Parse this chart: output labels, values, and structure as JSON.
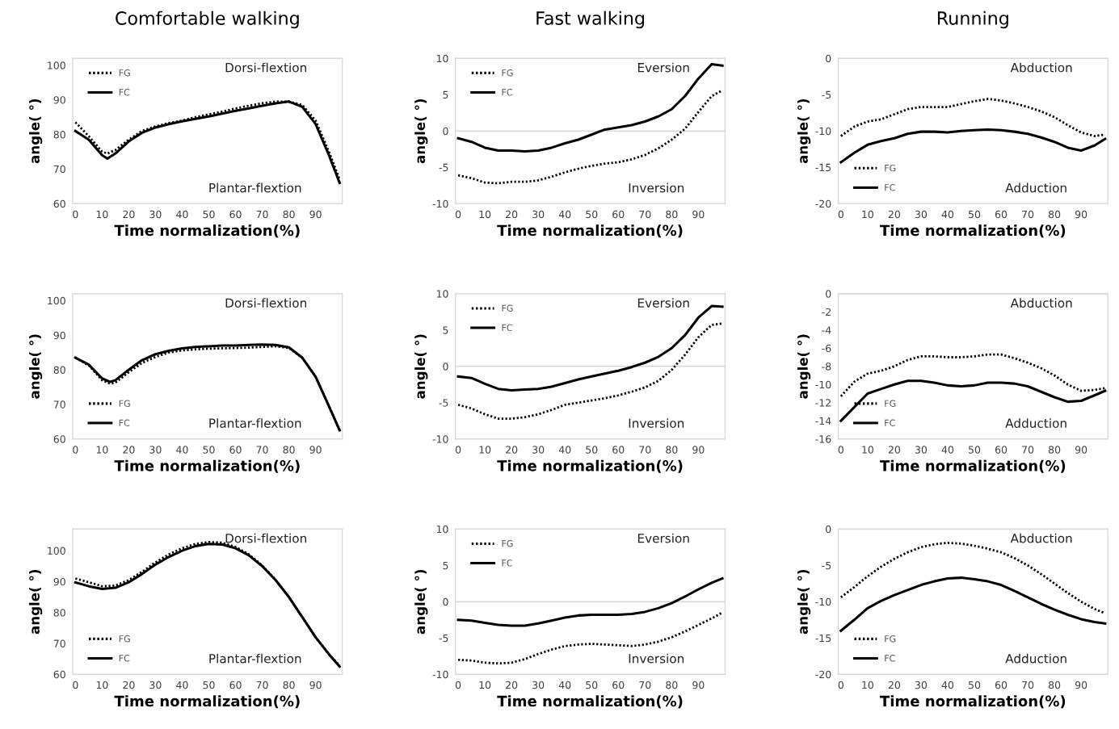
{
  "chart_data": [
    {
      "type": "line",
      "title": "Comfortable walking",
      "xlabel": "Time normalization(%)",
      "ylabel": "angle( °)",
      "annotations": [
        "Dorsi-flextion",
        "Plantar-flextion"
      ],
      "legend": "top left",
      "x": [
        0,
        5,
        10,
        12,
        15,
        20,
        25,
        30,
        35,
        40,
        45,
        50,
        55,
        60,
        65,
        70,
        75,
        80,
        85,
        90,
        95,
        99
      ],
      "xlim": [
        -1,
        100
      ],
      "xticks": [
        0,
        10,
        20,
        30,
        40,
        50,
        60,
        70,
        80,
        90
      ],
      "ylim": [
        60,
        102
      ],
      "yticks": [
        60,
        70,
        80,
        90,
        100
      ],
      "series": [
        {
          "name": "FG",
          "color": "#000000",
          "line_style": "dotted",
          "values": [
            83.5,
            79.5,
            75,
            74.5,
            75.5,
            78.5,
            81,
            82.3,
            83.3,
            84,
            85,
            85.8,
            86.6,
            87.5,
            88.3,
            89,
            89.5,
            89.5,
            88.5,
            84,
            75,
            67
          ]
        },
        {
          "name": "FC",
          "color": "#000000",
          "line_style": "solid",
          "values": [
            81,
            78.5,
            74,
            73,
            74.5,
            78,
            80.5,
            82,
            83,
            83.8,
            84.5,
            85.2,
            86,
            86.8,
            87.5,
            88.3,
            89,
            89.5,
            88,
            83,
            74,
            66
          ]
        }
      ]
    },
    {
      "type": "line",
      "title": "Fast walking",
      "xlabel": "Time normalization(%)",
      "ylabel": "angle( °)",
      "annotations": [
        "Eversion",
        "Inversion"
      ],
      "legend": "top left",
      "x": [
        0,
        5,
        10,
        15,
        20,
        25,
        30,
        35,
        40,
        45,
        50,
        55,
        60,
        65,
        70,
        75,
        80,
        85,
        90,
        95,
        99
      ],
      "xlim": [
        -1,
        100
      ],
      "xticks": [
        0,
        10,
        20,
        30,
        40,
        50,
        60,
        70,
        80,
        90
      ],
      "ylim": [
        -10,
        10
      ],
      "yticks": [
        -10,
        -5,
        0,
        5,
        10
      ],
      "ref_lines": [
        {
          "axis": "y",
          "value": 0,
          "color": "#d9d9d9"
        }
      ],
      "series": [
        {
          "name": "FG",
          "color": "#000000",
          "line_style": "dotted",
          "values": [
            -6.1,
            -6.5,
            -7.1,
            -7.2,
            -7,
            -7,
            -6.8,
            -6.3,
            -5.7,
            -5.2,
            -4.8,
            -4.5,
            -4.3,
            -3.9,
            -3.3,
            -2.4,
            -1.2,
            0.3,
            2.6,
            4.8,
            5.6
          ]
        },
        {
          "name": "FC",
          "color": "#000000",
          "line_style": "solid",
          "values": [
            -1,
            -1.5,
            -2.3,
            -2.7,
            -2.7,
            -2.8,
            -2.7,
            -2.3,
            -1.7,
            -1.2,
            -0.5,
            0.2,
            0.5,
            0.8,
            1.3,
            2,
            3,
            4.8,
            7.2,
            9.2,
            9
          ]
        }
      ]
    },
    {
      "type": "line",
      "title": "Running",
      "xlabel": "Time normalization(%)",
      "ylabel": "angle( °)",
      "annotations": [
        "Abduction",
        "Adduction"
      ],
      "legend": "bottom left",
      "x": [
        0,
        5,
        10,
        15,
        20,
        25,
        30,
        35,
        40,
        45,
        50,
        55,
        60,
        65,
        70,
        75,
        80,
        85,
        90,
        95,
        99
      ],
      "xlim": [
        -1,
        100
      ],
      "xticks": [
        0,
        10,
        20,
        30,
        40,
        50,
        60,
        70,
        80,
        90
      ],
      "ylim": [
        -20,
        0
      ],
      "yticks": [
        -20,
        -15,
        -10,
        -5,
        0
      ],
      "ref_lines": [
        {
          "axis": "y",
          "value": 0,
          "color": "#d9d9d9"
        }
      ],
      "series": [
        {
          "name": "FG",
          "color": "#000000",
          "line_style": "dotted",
          "values": [
            -10.7,
            -9.4,
            -8.7,
            -8.4,
            -7.7,
            -7,
            -6.7,
            -6.7,
            -6.7,
            -6.3,
            -5.9,
            -5.6,
            -5.8,
            -6.2,
            -6.7,
            -7.3,
            -8.1,
            -9.2,
            -10.2,
            -10.7,
            -10.5
          ]
        },
        {
          "name": "FC",
          "color": "#000000",
          "line_style": "solid",
          "values": [
            -14.3,
            -13,
            -11.9,
            -11.4,
            -11,
            -10.4,
            -10.1,
            -10.1,
            -10.2,
            -10,
            -9.9,
            -9.8,
            -9.9,
            -10.1,
            -10.4,
            -10.9,
            -11.5,
            -12.3,
            -12.7,
            -12,
            -11.1
          ]
        }
      ]
    },
    {
      "type": "line",
      "xlabel": "Time normalization(%)",
      "ylabel": "angle( °)",
      "annotations": [
        "Dorsi-flextion",
        "Plantar-flextion"
      ],
      "legend": "bottom left",
      "x": [
        0,
        5,
        10,
        13,
        15,
        20,
        25,
        30,
        35,
        40,
        45,
        50,
        55,
        60,
        65,
        70,
        75,
        80,
        85,
        90,
        95,
        99
      ],
      "xlim": [
        -1,
        100
      ],
      "xticks": [
        0,
        10,
        20,
        30,
        40,
        50,
        60,
        70,
        80,
        90
      ],
      "ylim": [
        60,
        102
      ],
      "yticks": [
        60,
        70,
        80,
        90,
        100
      ],
      "series": [
        {
          "name": "FG",
          "color": "#000000",
          "line_style": "dotted",
          "values": [
            83.5,
            81.3,
            77,
            76,
            76.3,
            79.3,
            82,
            83.7,
            85,
            85.6,
            85.9,
            86.1,
            86.2,
            86.3,
            86.4,
            86.6,
            86.8,
            86.3,
            83.5,
            78,
            69.5,
            62.5
          ]
        },
        {
          "name": "FC",
          "color": "#000000",
          "line_style": "solid",
          "values": [
            83.5,
            81.5,
            77.5,
            76.5,
            77,
            80,
            82.8,
            84.5,
            85.5,
            86.2,
            86.6,
            86.8,
            87,
            87,
            87.2,
            87.3,
            87.2,
            86.5,
            83.5,
            78,
            69.5,
            62.5
          ]
        }
      ]
    },
    {
      "type": "line",
      "xlabel": "Time normalization(%)",
      "ylabel": "angle( °)",
      "annotations": [
        "Eversion",
        "Inversion"
      ],
      "legend": "top left",
      "x": [
        0,
        5,
        10,
        15,
        20,
        25,
        30,
        35,
        40,
        45,
        50,
        55,
        60,
        65,
        70,
        75,
        80,
        85,
        90,
        95,
        99
      ],
      "xlim": [
        -1,
        100
      ],
      "xticks": [
        0,
        10,
        20,
        30,
        40,
        50,
        60,
        70,
        80,
        90
      ],
      "ylim": [
        -10,
        10
      ],
      "yticks": [
        -10,
        -5,
        0,
        5,
        10
      ],
      "ref_lines": [
        {
          "axis": "y",
          "value": 0,
          "color": "#d9d9d9"
        }
      ],
      "series": [
        {
          "name": "FG",
          "color": "#000000",
          "line_style": "dotted",
          "values": [
            -5.3,
            -5.8,
            -6.6,
            -7.2,
            -7.2,
            -7,
            -6.6,
            -6,
            -5.3,
            -5,
            -4.7,
            -4.4,
            -4,
            -3.5,
            -2.9,
            -2,
            -0.5,
            1.6,
            4,
            5.7,
            5.9
          ]
        },
        {
          "name": "FC",
          "color": "#000000",
          "line_style": "solid",
          "values": [
            -1.4,
            -1.6,
            -2.4,
            -3.1,
            -3.3,
            -3.2,
            -3.1,
            -2.8,
            -2.3,
            -1.8,
            -1.4,
            -1,
            -0.6,
            -0.1,
            0.5,
            1.3,
            2.5,
            4.3,
            6.7,
            8.3,
            8.2
          ]
        }
      ]
    },
    {
      "type": "line",
      "xlabel": "Time normalization(%)",
      "ylabel": "angle( °)",
      "annotations": [
        "Abduction",
        "Adduction"
      ],
      "legend": "bottom left",
      "x": [
        0,
        5,
        10,
        15,
        20,
        25,
        30,
        35,
        40,
        45,
        50,
        55,
        60,
        65,
        70,
        75,
        80,
        85,
        90,
        95,
        99
      ],
      "xlim": [
        -1,
        100
      ],
      "xticks": [
        0,
        10,
        20,
        30,
        40,
        50,
        60,
        70,
        80,
        90
      ],
      "ylim": [
        -16,
        0
      ],
      "yticks": [
        -16,
        -14,
        -12,
        -10,
        -8,
        -6,
        -4,
        -2,
        0
      ],
      "ref_lines": [
        {
          "axis": "y",
          "value": 0,
          "color": "#d9d9d9"
        }
      ],
      "series": [
        {
          "name": "FG",
          "color": "#000000",
          "line_style": "dotted",
          "values": [
            -11.3,
            -9.7,
            -8.8,
            -8.5,
            -8,
            -7.3,
            -6.9,
            -6.9,
            -7,
            -7,
            -6.9,
            -6.7,
            -6.7,
            -7.1,
            -7.6,
            -8.2,
            -9,
            -10,
            -10.7,
            -10.6,
            -10.4
          ]
        },
        {
          "name": "FC",
          "color": "#000000",
          "line_style": "solid",
          "values": [
            -14,
            -12.5,
            -11,
            -10.5,
            -10,
            -9.6,
            -9.6,
            -9.8,
            -10.1,
            -10.2,
            -10.1,
            -9.8,
            -9.8,
            -9.9,
            -10.2,
            -10.8,
            -11.4,
            -11.9,
            -11.8,
            -11.2,
            -10.7
          ]
        }
      ]
    },
    {
      "type": "line",
      "xlabel": "Time normalization(%)",
      "ylabel": "angle( °)",
      "annotations": [
        "Dorsi-flextion",
        "Plantar-flextion"
      ],
      "legend": "bottom left",
      "x": [
        0,
        5,
        10,
        15,
        20,
        25,
        30,
        35,
        40,
        45,
        50,
        55,
        60,
        65,
        70,
        75,
        80,
        85,
        90,
        95,
        99
      ],
      "xlim": [
        -1,
        100
      ],
      "xticks": [
        0,
        10,
        20,
        30,
        40,
        50,
        60,
        70,
        80,
        90
      ],
      "ylim": [
        60,
        107
      ],
      "yticks": [
        60,
        70,
        80,
        90,
        100
      ],
      "series": [
        {
          "name": "FG",
          "color": "#000000",
          "line_style": "dotted",
          "values": [
            91,
            89.8,
            88.5,
            88.7,
            90.5,
            93.2,
            96.2,
            98.8,
            100.8,
            102.2,
            102.8,
            102.6,
            101.2,
            98.8,
            95.2,
            90.6,
            85,
            78.5,
            72,
            66.5,
            62.8
          ]
        },
        {
          "name": "FC",
          "color": "#000000",
          "line_style": "solid",
          "values": [
            89.7,
            88.5,
            87.6,
            88,
            89.8,
            92.5,
            95.5,
            98,
            100,
            101.5,
            102.2,
            102,
            100.8,
            98.5,
            95,
            90.5,
            85,
            78.5,
            72,
            66.5,
            62.5
          ]
        }
      ]
    },
    {
      "type": "line",
      "xlabel": "Time normalization(%)",
      "ylabel": "angle( °)",
      "annotations": [
        "Eversion",
        "Inversion"
      ],
      "legend": "top left",
      "x": [
        0,
        5,
        10,
        15,
        20,
        25,
        30,
        35,
        40,
        45,
        50,
        55,
        60,
        65,
        70,
        75,
        80,
        85,
        90,
        95,
        99
      ],
      "xlim": [
        -1,
        100
      ],
      "xticks": [
        0,
        10,
        20,
        30,
        40,
        50,
        60,
        70,
        80,
        90
      ],
      "ylim": [
        -10,
        10
      ],
      "yticks": [
        -10,
        -5,
        0,
        5,
        10
      ],
      "ref_lines": [
        {
          "axis": "y",
          "value": 0,
          "color": "#d9d9d9"
        }
      ],
      "series": [
        {
          "name": "FG",
          "color": "#000000",
          "line_style": "dotted",
          "values": [
            -8,
            -8.1,
            -8.4,
            -8.5,
            -8.4,
            -7.9,
            -7.2,
            -6.6,
            -6.1,
            -5.9,
            -5.8,
            -5.9,
            -6,
            -6.1,
            -5.9,
            -5.5,
            -4.9,
            -4.1,
            -3.2,
            -2.3,
            -1.5
          ]
        },
        {
          "name": "FC",
          "color": "#000000",
          "line_style": "solid",
          "values": [
            -2.5,
            -2.6,
            -2.9,
            -3.2,
            -3.3,
            -3.3,
            -3,
            -2.6,
            -2.2,
            -1.9,
            -1.8,
            -1.8,
            -1.8,
            -1.7,
            -1.4,
            -0.9,
            -0.2,
            0.7,
            1.7,
            2.6,
            3.2
          ]
        }
      ]
    },
    {
      "type": "line",
      "xlabel": "Time normalization(%)",
      "ylabel": "angle( °)",
      "annotations": [
        "Abduction",
        "Adduction"
      ],
      "legend": "bottom left",
      "x": [
        0,
        5,
        10,
        15,
        20,
        25,
        30,
        35,
        40,
        45,
        50,
        55,
        60,
        65,
        70,
        75,
        80,
        85,
        90,
        95,
        99
      ],
      "xlim": [
        -1,
        100
      ],
      "xticks": [
        0,
        10,
        20,
        30,
        40,
        50,
        60,
        70,
        80,
        90
      ],
      "ylim": [
        -20,
        0
      ],
      "yticks": [
        -20,
        -15,
        -10,
        -5,
        0
      ],
      "ref_lines": [
        {
          "axis": "y",
          "value": 0,
          "color": "#d9d9d9"
        }
      ],
      "series": [
        {
          "name": "FG",
          "color": "#000000",
          "line_style": "dotted",
          "values": [
            -9.4,
            -8,
            -6.5,
            -5.2,
            -4.1,
            -3.2,
            -2.5,
            -2.1,
            -1.9,
            -2,
            -2.3,
            -2.7,
            -3.2,
            -4,
            -5,
            -6.2,
            -7.5,
            -8.8,
            -10,
            -11,
            -11.6
          ]
        },
        {
          "name": "FC",
          "color": "#000000",
          "line_style": "solid",
          "values": [
            -14,
            -12.5,
            -10.9,
            -9.9,
            -9.1,
            -8.4,
            -7.7,
            -7.2,
            -6.8,
            -6.7,
            -6.9,
            -7.2,
            -7.7,
            -8.5,
            -9.4,
            -10.3,
            -11.1,
            -11.8,
            -12.4,
            -12.8,
            -13
          ]
        }
      ]
    }
  ]
}
